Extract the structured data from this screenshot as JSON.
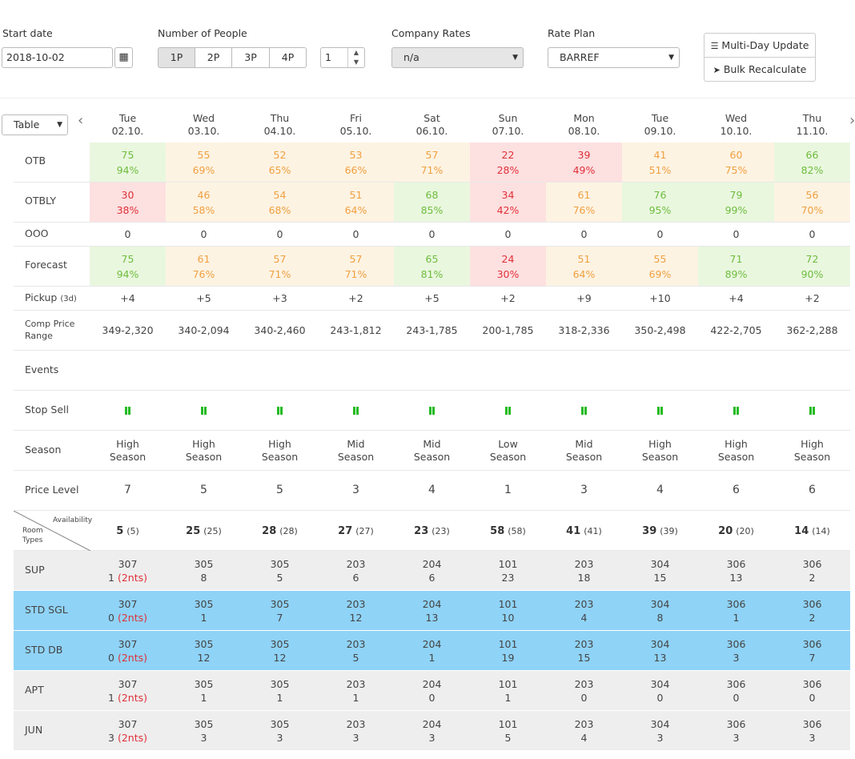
{
  "controls": {
    "start_date_label": "Start date",
    "start_date_value": "2018-10-02",
    "people_label": "Number of People",
    "people_options": [
      "1P",
      "2P",
      "3P",
      "4P"
    ],
    "people_count": "1",
    "company_rates_label": "Company Rates",
    "company_rates_value": "n/a",
    "rate_plan_label": "Rate Plan",
    "rate_plan_value": "BARREF",
    "multi_day_label": "Multi-Day Update",
    "bulk_label": "Bulk Recalculate",
    "view_select": "Table"
  },
  "days": [
    {
      "dow": "Tue",
      "date": "02.10."
    },
    {
      "dow": "Wed",
      "date": "03.10."
    },
    {
      "dow": "Thu",
      "date": "04.10."
    },
    {
      "dow": "Fri",
      "date": "05.10."
    },
    {
      "dow": "Sat",
      "date": "06.10."
    },
    {
      "dow": "Sun",
      "date": "07.10."
    },
    {
      "dow": "Mon",
      "date": "08.10."
    },
    {
      "dow": "Tue",
      "date": "09.10."
    },
    {
      "dow": "Wed",
      "date": "10.10."
    },
    {
      "dow": "Thu",
      "date": "11.10."
    }
  ],
  "metrics": {
    "otb": {
      "label": "OTB",
      "cells": [
        [
          "75",
          "94%",
          "green"
        ],
        [
          "55",
          "69%",
          "orange"
        ],
        [
          "52",
          "65%",
          "orange"
        ],
        [
          "53",
          "66%",
          "orange"
        ],
        [
          "57",
          "71%",
          "orange"
        ],
        [
          "22",
          "28%",
          "red"
        ],
        [
          "39",
          "49%",
          "red"
        ],
        [
          "41",
          "51%",
          "orange"
        ],
        [
          "60",
          "75%",
          "orange"
        ],
        [
          "66",
          "82%",
          "green"
        ]
      ]
    },
    "otbly": {
      "label": "OTBLY",
      "cells": [
        [
          "30",
          "38%",
          "red"
        ],
        [
          "46",
          "58%",
          "orange"
        ],
        [
          "54",
          "68%",
          "orange"
        ],
        [
          "51",
          "64%",
          "orange"
        ],
        [
          "68",
          "85%",
          "green"
        ],
        [
          "34",
          "42%",
          "red"
        ],
        [
          "61",
          "76%",
          "orange"
        ],
        [
          "76",
          "95%",
          "green"
        ],
        [
          "79",
          "99%",
          "green"
        ],
        [
          "56",
          "70%",
          "orange"
        ]
      ]
    },
    "ooo": {
      "label": "OOO",
      "values": [
        "0",
        "0",
        "0",
        "0",
        "0",
        "0",
        "0",
        "0",
        "0",
        "0"
      ]
    },
    "forecast": {
      "label": "Forecast",
      "cells": [
        [
          "75",
          "94%",
          "green"
        ],
        [
          "61",
          "76%",
          "orange"
        ],
        [
          "57",
          "71%",
          "orange"
        ],
        [
          "57",
          "71%",
          "orange"
        ],
        [
          "65",
          "81%",
          "green"
        ],
        [
          "24",
          "30%",
          "red"
        ],
        [
          "51",
          "64%",
          "orange"
        ],
        [
          "55",
          "69%",
          "orange"
        ],
        [
          "71",
          "89%",
          "green"
        ],
        [
          "72",
          "90%",
          "green"
        ]
      ]
    },
    "pickup": {
      "label": "Pickup",
      "suffix": "(3d)",
      "values": [
        "+4",
        "+5",
        "+3",
        "+2",
        "+5",
        "+2",
        "+9",
        "+10",
        "+4",
        "+2"
      ]
    },
    "comp": {
      "label1": "Comp Price",
      "label2": "Range",
      "values": [
        "349-2,320",
        "340-2,094",
        "340-2,460",
        "243-1,812",
        "243-1,785",
        "200-1,785",
        "318-2,336",
        "350-2,498",
        "422-2,705",
        "362-2,288"
      ]
    },
    "events": {
      "label": "Events"
    },
    "stop_sell": {
      "label": "Stop Sell"
    },
    "season": {
      "label": "Season",
      "values": [
        [
          "High",
          "Season"
        ],
        [
          "High",
          "Season"
        ],
        [
          "High",
          "Season"
        ],
        [
          "Mid",
          "Season"
        ],
        [
          "Mid",
          "Season"
        ],
        [
          "Low",
          "Season"
        ],
        [
          "Mid",
          "Season"
        ],
        [
          "High",
          "Season"
        ],
        [
          "High",
          "Season"
        ],
        [
          "High",
          "Season"
        ]
      ]
    },
    "price_level": {
      "label": "Price Level",
      "values": [
        "7",
        "5",
        "5",
        "3",
        "4",
        "1",
        "3",
        "4",
        "6",
        "6"
      ]
    }
  },
  "availability": {
    "corner_top": "Availability",
    "corner_bottom1": "Room",
    "corner_bottom2": "Types",
    "values": [
      [
        "5",
        "(5)"
      ],
      [
        "25",
        "(25)"
      ],
      [
        "28",
        "(28)"
      ],
      [
        "27",
        "(27)"
      ],
      [
        "23",
        "(23)"
      ],
      [
        "58",
        "(58)"
      ],
      [
        "41",
        "(41)"
      ],
      [
        "39",
        "(39)"
      ],
      [
        "20",
        "(20)"
      ],
      [
        "14",
        "(14)"
      ]
    ]
  },
  "room_types": [
    {
      "name": "SUP",
      "bg": "#eeeeee",
      "cells": [
        [
          "307",
          "1",
          "(2nts)"
        ],
        [
          "305",
          "8"
        ],
        [
          "305",
          "5"
        ],
        [
          "203",
          "6"
        ],
        [
          "204",
          "6"
        ],
        [
          "101",
          "23"
        ],
        [
          "203",
          "18"
        ],
        [
          "304",
          "15"
        ],
        [
          "306",
          "13"
        ],
        [
          "306",
          "2"
        ]
      ]
    },
    {
      "name": "STD SGL",
      "bg": "#8fd3f7",
      "cells": [
        [
          "307",
          "0",
          "(2nts)"
        ],
        [
          "305",
          "1"
        ],
        [
          "305",
          "7"
        ],
        [
          "203",
          "12"
        ],
        [
          "204",
          "13"
        ],
        [
          "101",
          "10"
        ],
        [
          "203",
          "4"
        ],
        [
          "304",
          "8"
        ],
        [
          "306",
          "1"
        ],
        [
          "306",
          "2"
        ]
      ]
    },
    {
      "name": "STD DB",
      "bg": "#8fd3f7",
      "cells": [
        [
          "307",
          "0",
          "(2nts)"
        ],
        [
          "305",
          "12"
        ],
        [
          "305",
          "12"
        ],
        [
          "203",
          "5"
        ],
        [
          "204",
          "1"
        ],
        [
          "101",
          "19"
        ],
        [
          "203",
          "15"
        ],
        [
          "304",
          "13"
        ],
        [
          "306",
          "3"
        ],
        [
          "306",
          "7"
        ]
      ]
    },
    {
      "name": "APT",
      "bg": "#eeeeee",
      "cells": [
        [
          "307",
          "1",
          "(2nts)"
        ],
        [
          "305",
          "1"
        ],
        [
          "305",
          "1"
        ],
        [
          "203",
          "1"
        ],
        [
          "204",
          "0"
        ],
        [
          "101",
          "1"
        ],
        [
          "203",
          "0"
        ],
        [
          "304",
          "0"
        ],
        [
          "306",
          "0"
        ],
        [
          "306",
          "0"
        ]
      ]
    },
    {
      "name": "JUN",
      "bg": "#eeeeee",
      "cells": [
        [
          "307",
          "3",
          "(2nts)"
        ],
        [
          "305",
          "3"
        ],
        [
          "305",
          "3"
        ],
        [
          "203",
          "3"
        ],
        [
          "204",
          "3"
        ],
        [
          "101",
          "5"
        ],
        [
          "203",
          "4"
        ],
        [
          "304",
          "3"
        ],
        [
          "306",
          "3"
        ],
        [
          "306",
          "3"
        ]
      ]
    }
  ],
  "colors": {
    "green_bg": "#e9f7df",
    "orange_bg": "#fdf3e3",
    "red_bg": "#fde0e0",
    "room_blue": "#8fd3f7",
    "room_grey": "#eeeeee",
    "stop_sell": "#22bb22",
    "nts_red": "#e0303a"
  }
}
